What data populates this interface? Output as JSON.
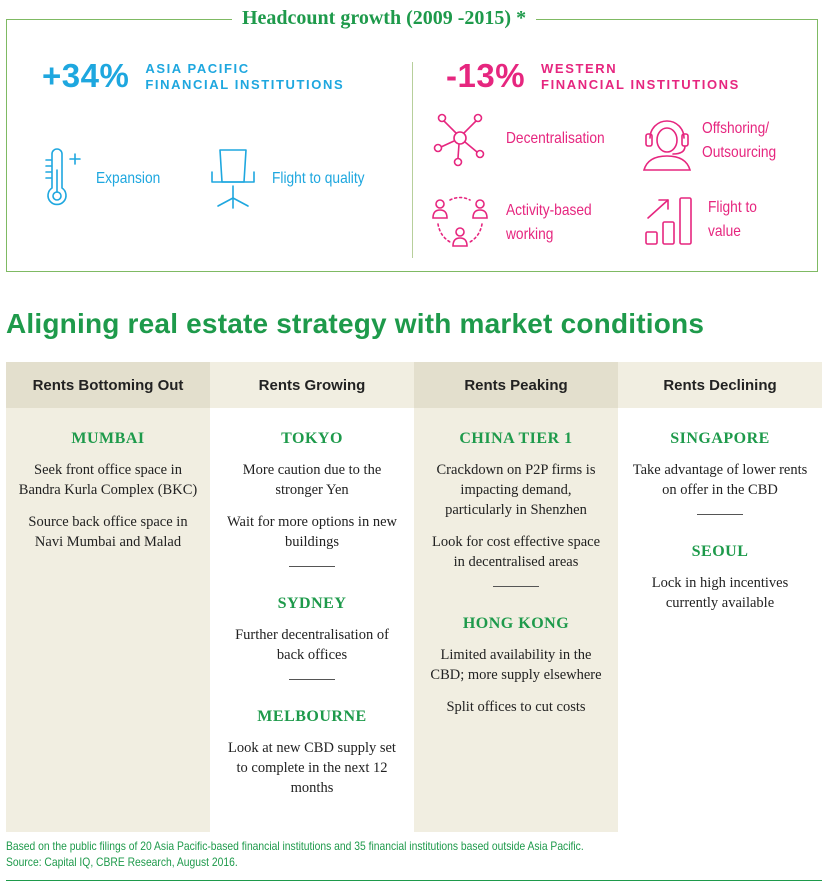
{
  "header": {
    "title": "Headcount growth (2009 -2015) *",
    "left": {
      "value": "+34%",
      "label_line1": "ASIA PACIFIC",
      "label_line2": "FINANCIAL INSTITUTIONS",
      "items": [
        {
          "label": "Expansion",
          "icon": "thermometer-icon"
        },
        {
          "label": "Flight to quality",
          "icon": "office-chair-icon"
        }
      ]
    },
    "right": {
      "value": "-13%",
      "label_line1": "WESTERN",
      "label_line2": "FINANCIAL INSTITUTIONS",
      "items": [
        {
          "label": "Decentralisation",
          "icon": "network-icon"
        },
        {
          "label_line1": "Offshoring/",
          "label_line2": "Outsourcing",
          "icon": "headset-icon"
        },
        {
          "label_line1": "Activity-based",
          "label_line2": "working",
          "icon": "people-cycle-icon"
        },
        {
          "label_line1": "Flight to",
          "label_line2": "value",
          "icon": "growth-bars-icon"
        }
      ]
    },
    "colors": {
      "blue": "#1ea7df",
      "pink": "#e6267f",
      "green": "#1e9a4b"
    }
  },
  "section_title": "Aligning real estate strategy with market conditions",
  "columns": [
    {
      "heading": "Rents Bottoming Out",
      "cities": [
        {
          "name": "MUMBAI",
          "paras": [
            "Seek front office space in Bandra Kurla Complex (BKC)",
            "Source back office space in Navi Mumbai and Malad"
          ]
        }
      ]
    },
    {
      "heading": "Rents Growing",
      "cities": [
        {
          "name": "TOKYO",
          "paras": [
            "More caution due to the stronger Yen",
            "Wait for more options in new buildings"
          ]
        },
        {
          "name": "SYDNEY",
          "paras": [
            "Further decentralisation of back offices"
          ]
        },
        {
          "name": "MELBOURNE",
          "paras": [
            "Look at new CBD supply set to complete in the next 12 months"
          ]
        }
      ]
    },
    {
      "heading": "Rents Peaking",
      "cities": [
        {
          "name": "CHINA TIER 1",
          "paras": [
            "Crackdown on P2P firms is impacting demand, particularly in Shenzhen",
            "Look for cost effective space in decentralised areas"
          ]
        },
        {
          "name": "HONG KONG",
          "paras": [
            "Limited availability in the CBD; more supply elsewhere",
            "Split offices to cut costs"
          ]
        }
      ]
    },
    {
      "heading": "Rents Declining",
      "cities": [
        {
          "name": "SINGAPORE",
          "paras": [
            "Take advantage of lower rents on offer in the CBD"
          ]
        },
        {
          "name": "SEOUL",
          "paras": [
            "Lock in high incentives currently available"
          ]
        }
      ]
    }
  ],
  "footer": {
    "note": "Based on the public filings of 20 Asia Pacific-based financial institutions and 35 financial institutions based outside Asia Pacific.",
    "source": "Source: Capital IQ, CBRE Research, August 2016."
  }
}
